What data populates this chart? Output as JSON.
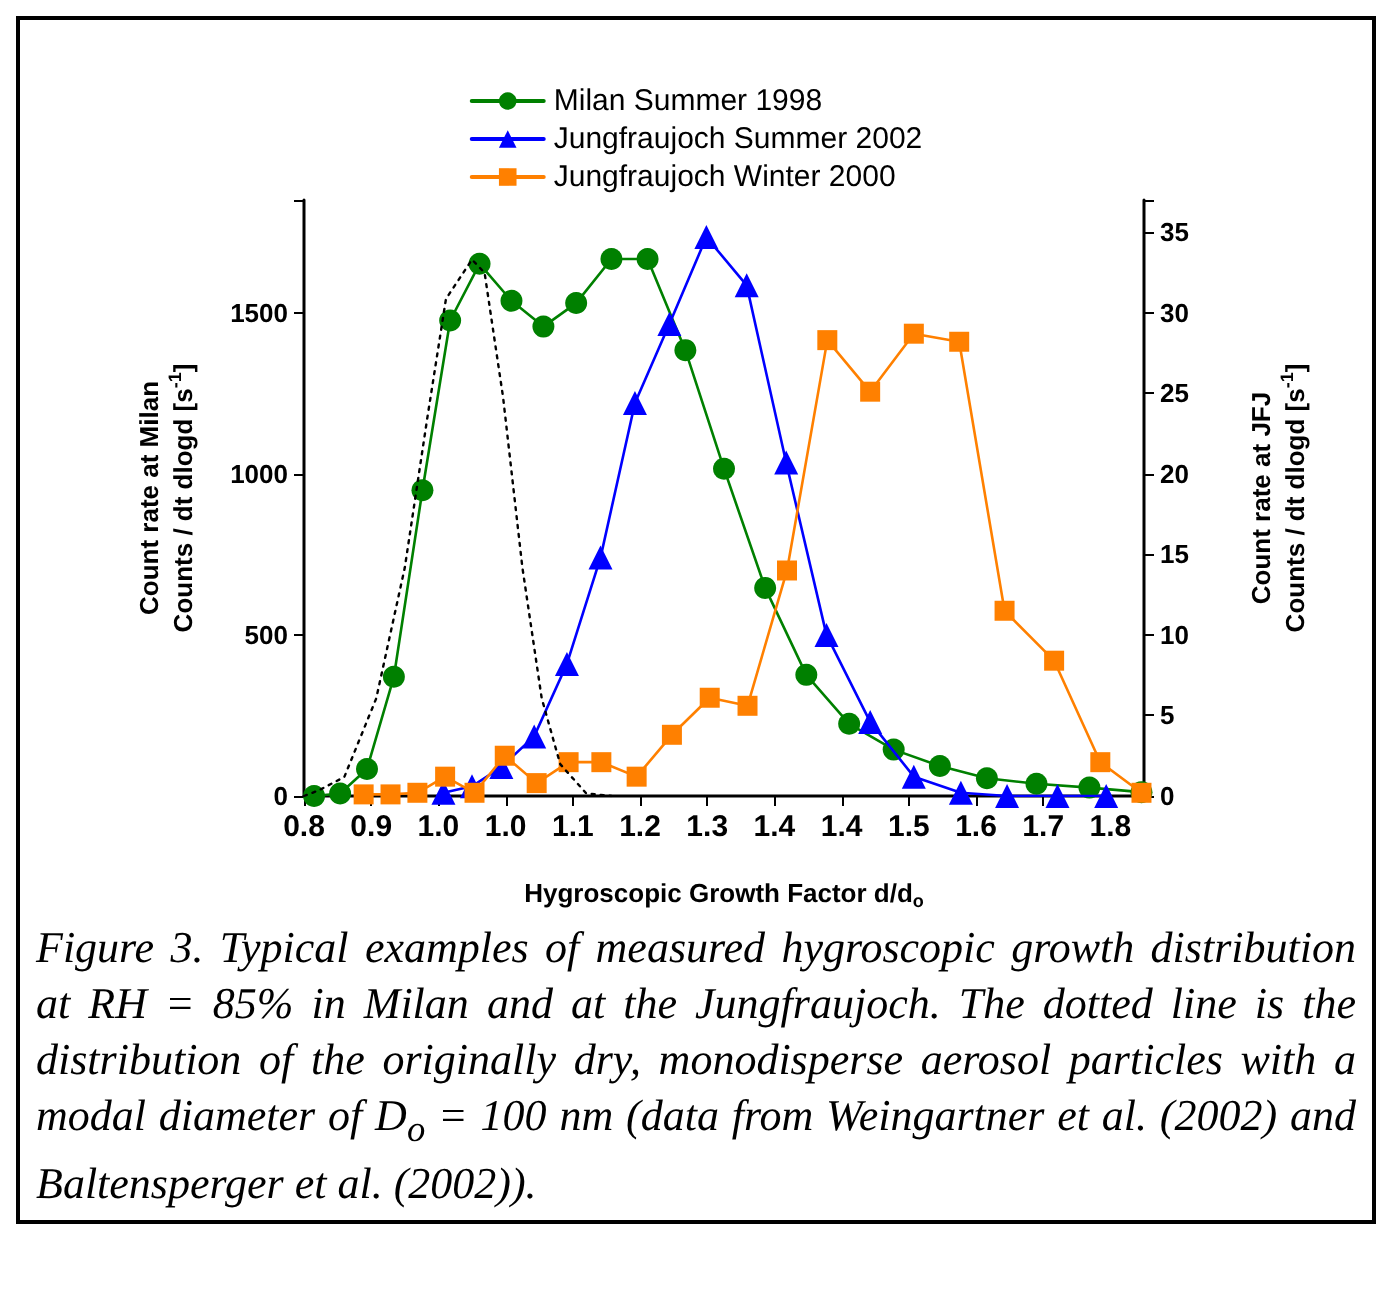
{
  "chart_data": {
    "type": "line",
    "xlabel": "Hygroscopic Growth Factor d/d$_{o}$",
    "ylabel": "Count rate at Milan\nCounts / dt dlogd [s$^{-1}$]",
    "y2label": "Count rate at JFJ\nCounts / dt dlogd [s$^{-1}$]",
    "xlim": [
      0.8,
      1.8
    ],
    "ylim": [
      0,
      1850
    ],
    "y2lim": [
      0,
      37
    ],
    "xticks": [
      {
        "value": 0.8,
        "label": "0.8"
      },
      {
        "value": 0.88,
        "label": "0.9"
      },
      {
        "value": 0.96,
        "label": "1.0"
      },
      {
        "value": 1.04,
        "label": "1.0"
      },
      {
        "value": 1.12,
        "label": "1.1"
      },
      {
        "value": 1.2,
        "label": "1.2"
      },
      {
        "value": 1.28,
        "label": "1.3"
      },
      {
        "value": 1.36,
        "label": "1.4"
      },
      {
        "value": 1.44,
        "label": "1.4"
      },
      {
        "value": 1.52,
        "label": "1.5"
      },
      {
        "value": 1.6,
        "label": "1.6"
      },
      {
        "value": 1.68,
        "label": "1.7"
      },
      {
        "value": 1.76,
        "label": "1.8"
      }
    ],
    "yticks": [
      0,
      500,
      1000,
      1500
    ],
    "y2ticks": [
      0,
      5,
      10,
      15,
      20,
      25,
      30,
      35
    ],
    "legend": "top",
    "grid": false,
    "series": [
      {
        "name": "Milan Summer 1998",
        "color": "#008000",
        "marker": "circle",
        "x": [
          0.812,
          0.843,
          0.875,
          0.907,
          0.941,
          0.974,
          1.009,
          1.047,
          1.085,
          1.124,
          1.166,
          1.209,
          1.254,
          1.3,
          1.349,
          1.398,
          1.449,
          1.502,
          1.557,
          1.613,
          1.672,
          1.735,
          1.797
        ],
        "values": [
          0,
          8,
          84,
          370,
          949,
          1476,
          1652,
          1537,
          1457,
          1530,
          1667,
          1667,
          1384,
          1016,
          646,
          376,
          224,
          144,
          93,
          55,
          38,
          26,
          12
        ]
      },
      {
        "name": "Jungfraujoch Summer 2002",
        "color": "#0000ff",
        "marker": "triangle",
        "axis": "y2",
        "x": [
          0.966,
          1.0,
          1.035,
          1.074,
          1.113,
          1.153,
          1.194,
          1.235,
          1.279,
          1.327,
          1.374,
          1.422,
          1.474,
          1.526,
          1.582,
          1.637,
          1.697,
          1.755
        ],
        "values": [
          0.2,
          0.6,
          1.8,
          3.7,
          8.2,
          14.8,
          24.4,
          29.3,
          34.7,
          31.7,
          20.7,
          10.0,
          4.6,
          1.2,
          0.2,
          0,
          0,
          0
        ]
      },
      {
        "name": "Jungfraujoch Winter 2000",
        "color": "#ff8000",
        "marker": "square",
        "axis": "y2",
        "x": [
          0.871,
          0.903,
          0.935,
          0.968,
          1.003,
          1.039,
          1.077,
          1.115,
          1.154,
          1.196,
          1.238,
          1.283,
          1.328,
          1.375,
          1.423,
          1.474,
          1.526,
          1.58,
          1.634,
          1.693,
          1.748,
          1.797
        ],
        "values": [
          0.1,
          0.1,
          0.2,
          1.2,
          0.2,
          2.5,
          0.8,
          2.1,
          2.1,
          1.2,
          3.8,
          6.1,
          5.6,
          14.0,
          28.3,
          25.1,
          28.7,
          28.2,
          11.5,
          8.4,
          2.1,
          0.2
        ]
      },
      {
        "color": "#000000",
        "marker": "none",
        "line_style": "dotted",
        "x": [
          0.8,
          0.818,
          0.848,
          0.886,
          0.92,
          0.947,
          0.969,
          1.0,
          1.015,
          1.037,
          1.06,
          1.083,
          1.105,
          1.136,
          1.166
        ],
        "values": [
          0,
          18,
          59,
          303,
          709,
          1177,
          1543,
          1665,
          1624,
          1238,
          709,
          303,
          99,
          8,
          0
        ]
      }
    ],
    "annotations": [
      "Figure 3.  Typical examples of measured hygroscopic growth distribution at RH = 85% in Milan and at the Jungfraujoch. The dotted line is the distribution of the originally dry, monodisperse aerosol particles with a modal diameter of D$_{o}$ = 100 nm (data from Weingartner et al. (2002) and Baltensperger et al. (2002))."
    ]
  }
}
